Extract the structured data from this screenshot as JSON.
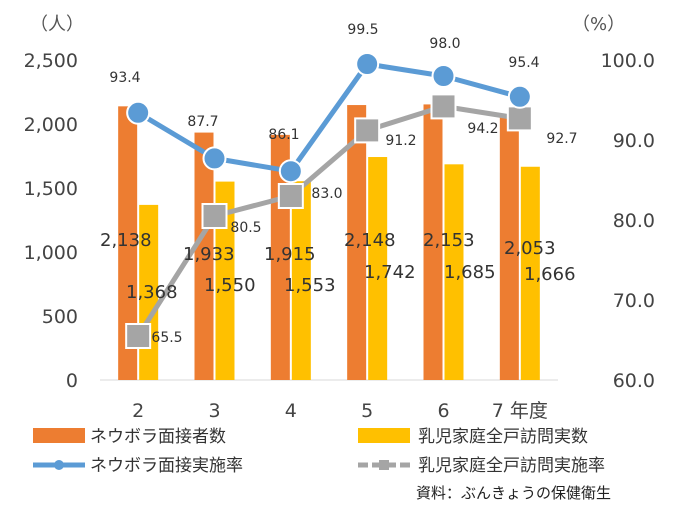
{
  "chart_data": {
    "type": "bar",
    "categories": [
      "2",
      "3",
      "4",
      "5",
      "6",
      "7 年度"
    ],
    "series": [
      {
        "name": "ネウボラ面接者数",
        "type": "bar",
        "axis": "left",
        "color": "#ED7D31",
        "values": [
          2138,
          1933,
          1915,
          2148,
          2153,
          2053
        ],
        "labels": [
          "2,138",
          "1,933",
          "1,915",
          "2,148",
          "2,153",
          "2,053"
        ]
      },
      {
        "name": "乳児家庭全戸訪問実数",
        "type": "bar",
        "axis": "left",
        "color": "#FFC000",
        "values": [
          1368,
          1550,
          1553,
          1742,
          1685,
          1666
        ],
        "labels": [
          "1,368",
          "1,550",
          "1,553",
          "1,742",
          "1,685",
          "1,666"
        ]
      },
      {
        "name": "ネウボラ面接実施率",
        "type": "line",
        "axis": "right",
        "color": "#5B9BD5",
        "values": [
          93.4,
          87.7,
          86.1,
          99.5,
          98.0,
          95.4
        ],
        "labels": [
          "93.4",
          "87.7",
          "86.1",
          "99.5",
          "98.0",
          "95.4"
        ]
      },
      {
        "name": "乳児家庭全戸訪問実施率",
        "type": "line",
        "axis": "right",
        "color": "#A5A5A5",
        "values": [
          65.5,
          80.5,
          83.0,
          91.2,
          94.2,
          92.7
        ],
        "labels": [
          "65.5",
          "80.5",
          "83.0",
          "91.2",
          "94.2",
          "92.7"
        ]
      }
    ],
    "y_left": {
      "unit": "（人）",
      "ylim": [
        0,
        2500
      ],
      "ticks": [
        "0",
        "500",
        "1,000",
        "1,500",
        "2,000",
        "2,500"
      ]
    },
    "y_right": {
      "unit": "（%）",
      "ylim": [
        60,
        100
      ],
      "ticks": [
        "60.0",
        "70.0",
        "80.0",
        "90.0",
        "100.0"
      ]
    },
    "legend_position": "bottom",
    "grid": false
  },
  "source_note": "資料：ぶんきょうの保健衛生"
}
